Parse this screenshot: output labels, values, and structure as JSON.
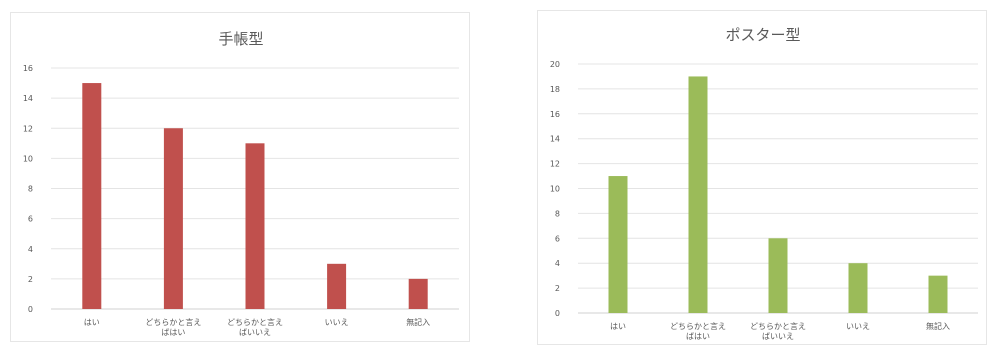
{
  "chart_data": [
    {
      "type": "bar",
      "title": "手帳型",
      "categories": [
        [
          "はい"
        ],
        [
          "どちらかと言え",
          "ばはい"
        ],
        [
          "どちらかと言え",
          "ばいいえ"
        ],
        [
          "いいえ"
        ],
        [
          "無記入"
        ]
      ],
      "values": [
        15,
        12,
        11,
        3,
        2
      ],
      "yticks": [
        0,
        2,
        4,
        6,
        8,
        10,
        12,
        14,
        16
      ],
      "ylim": [
        0,
        16
      ],
      "color": "#c0504d",
      "grid": true,
      "legend": "none"
    },
    {
      "type": "bar",
      "title": "ポスター型",
      "categories": [
        [
          "はい"
        ],
        [
          "どちらかと言え",
          "ばはい"
        ],
        [
          "どちらかと言え",
          "ばいいえ"
        ],
        [
          "いいえ"
        ],
        [
          "無記入"
        ]
      ],
      "values": [
        11,
        19,
        6,
        4,
        3
      ],
      "yticks": [
        0,
        2,
        4,
        6,
        8,
        10,
        12,
        14,
        16,
        18,
        20
      ],
      "ylim": [
        0,
        20
      ],
      "color": "#9bbb59",
      "grid": true,
      "legend": "none"
    }
  ]
}
